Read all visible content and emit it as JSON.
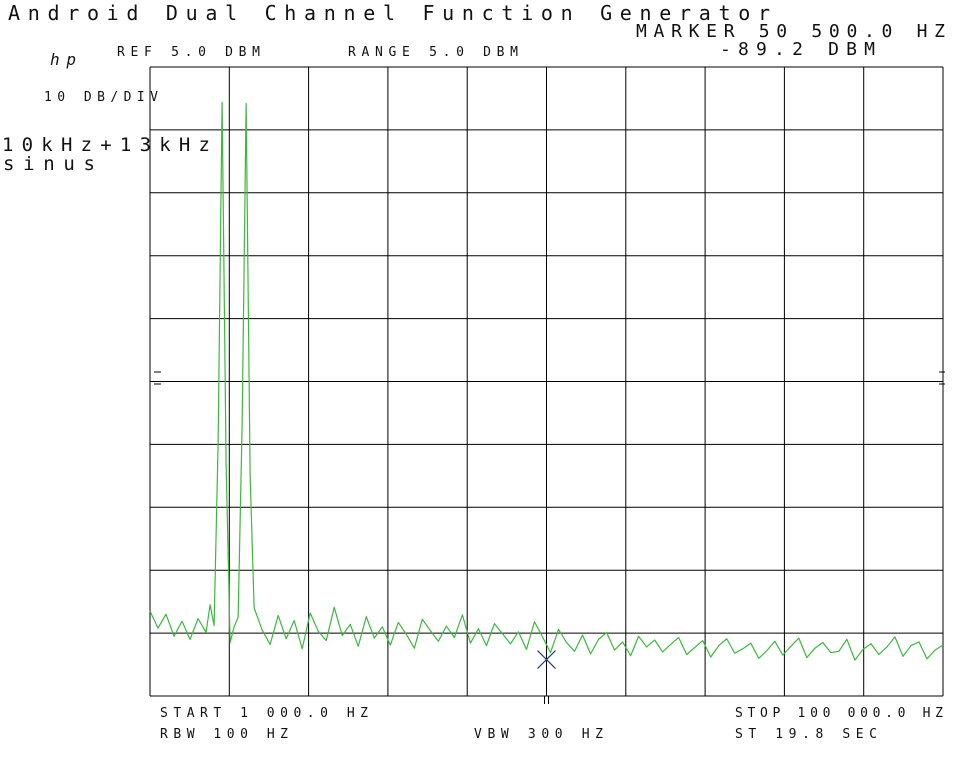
{
  "chart_data": {
    "type": "line",
    "title": "Android Dual Channel Function Generator",
    "logo": "hp",
    "ref_label": "REF 5.0 DBM",
    "range_label": "RANGE 5.0 DBM",
    "scale_label": "10 DB/DIV",
    "note": [
      "10kHz+13kHz",
      "sinus"
    ],
    "start_label": "START 1 000.0 HZ",
    "stop_label": "STOP 100 000.0 HZ",
    "rbw_label": "RBW 100 HZ",
    "vbw_label": "VBW 300 HZ",
    "sweep_label": "ST 19.8 SEC",
    "marker": {
      "x": 50500,
      "y": -89.2,
      "x_label": "MARKER 50 500.0 HZ",
      "y_label": "-89.2 DBM",
      "color": "#22407a"
    },
    "xlim": [
      1000,
      100000
    ],
    "ylim": [
      -95,
      5
    ],
    "xticks": [
      1000,
      10900,
      20800,
      30700,
      40600,
      50500,
      60400,
      70300,
      80200,
      90100,
      100000
    ],
    "yticks": [
      -95,
      -85,
      -75,
      -65,
      -55,
      -45,
      -35,
      -25,
      -15,
      -5,
      5
    ],
    "grid": true,
    "x": [
      1000,
      2000,
      3000,
      4000,
      5000,
      6000,
      7000,
      8000,
      8500,
      9000,
      9500,
      10000,
      10500,
      11000,
      11500,
      12000,
      12500,
      13000,
      13500,
      14000,
      15000,
      16000,
      17000,
      18000,
      19000,
      20000,
      21000,
      22000,
      23000,
      24000,
      25000,
      26000,
      27000,
      28000,
      29000,
      30000,
      31000,
      32000,
      33000,
      34000,
      35000,
      36000,
      37000,
      38000,
      39000,
      40000,
      41000,
      42000,
      43000,
      44000,
      45000,
      46000,
      47000,
      48000,
      49000,
      50000,
      51000,
      52000,
      53000,
      54000,
      55000,
      56000,
      57000,
      58000,
      59000,
      60000,
      61000,
      62000,
      63000,
      64000,
      65000,
      66000,
      67000,
      68000,
      69000,
      70000,
      71000,
      72000,
      73000,
      74000,
      75000,
      76000,
      77000,
      78000,
      79000,
      80000,
      81000,
      82000,
      83000,
      84000,
      85000,
      86000,
      87000,
      88000,
      89000,
      90000,
      91000,
      92000,
      93000,
      94000,
      95000,
      96000,
      97000,
      98000,
      99000,
      100000
    ],
    "series": [
      {
        "name": "trace",
        "color": "#3cb93c",
        "values": [
          -81.5,
          -84.2,
          -82.0,
          -85.5,
          -83.1,
          -86.0,
          -82.7,
          -84.9,
          -80.5,
          -83.8,
          -55.0,
          -0.6,
          -58.0,
          -86.5,
          -84.0,
          -82.5,
          -52.0,
          -0.8,
          -60.0,
          -81.0,
          -84.5,
          -86.8,
          -82.2,
          -85.9,
          -83.0,
          -87.5,
          -81.8,
          -84.7,
          -86.2,
          -80.9,
          -85.4,
          -83.6,
          -87.1,
          -82.4,
          -85.8,
          -84.0,
          -86.9,
          -83.3,
          -85.2,
          -87.4,
          -82.8,
          -84.6,
          -86.3,
          -83.9,
          -85.7,
          -82.1,
          -86.6,
          -84.3,
          -87.0,
          -83.5,
          -85.1,
          -86.7,
          -84.8,
          -87.6,
          -83.2,
          -85.6,
          -88.1,
          -84.4,
          -86.5,
          -87.9,
          -85.3,
          -88.3,
          -86.0,
          -84.9,
          -87.7,
          -86.4,
          -88.6,
          -85.5,
          -87.2,
          -86.1,
          -88.0,
          -86.8,
          -85.7,
          -88.4,
          -87.3,
          -86.2,
          -88.8,
          -87.0,
          -85.9,
          -88.2,
          -87.5,
          -86.6,
          -89.0,
          -87.8,
          -86.3,
          -88.5,
          -87.1,
          -85.8,
          -88.9,
          -87.4,
          -86.5,
          -88.1,
          -87.9,
          -86.0,
          -89.3,
          -87.6,
          -86.7,
          -88.4,
          -87.2,
          -85.6,
          -88.7,
          -87.0,
          -86.4,
          -89.1,
          -87.7,
          -86.9
        ]
      }
    ]
  }
}
